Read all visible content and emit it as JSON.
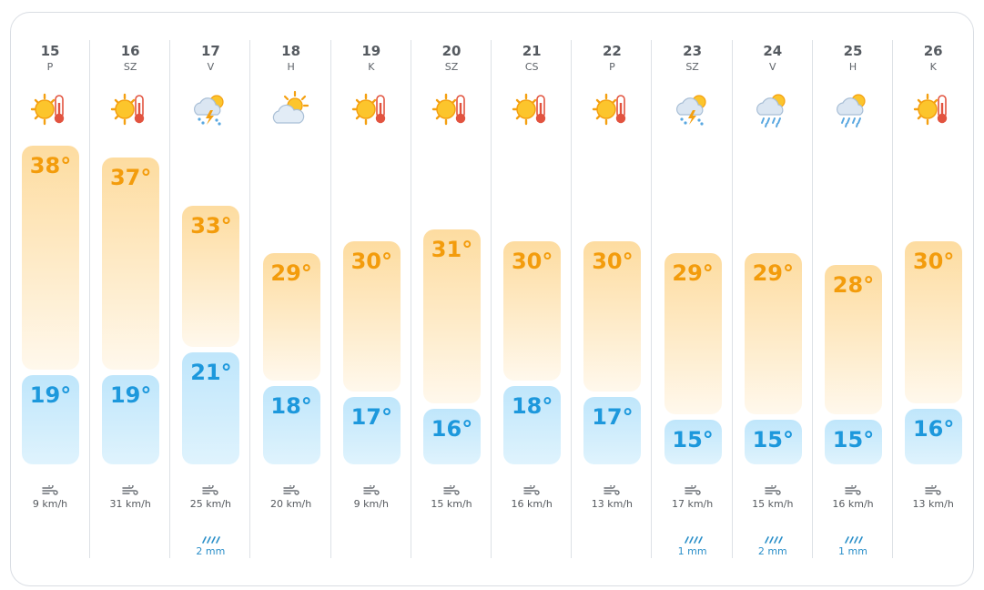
{
  "colors": {
    "high": "#f39c0c",
    "low": "#1d98dc",
    "rain": "#2b8fc9"
  },
  "days": [
    {
      "num": "15",
      "name": "P",
      "icon": "sun-thermometer-icon",
      "high": "38°",
      "high_c": 38,
      "low": "19°",
      "low_c": 19,
      "wind": "9 km/h",
      "rain": ""
    },
    {
      "num": "16",
      "name": "SZ",
      "icon": "sun-thermometer-icon",
      "high": "37°",
      "high_c": 37,
      "low": "19°",
      "low_c": 19,
      "wind": "31 km/h",
      "rain": ""
    },
    {
      "num": "17",
      "name": "V",
      "icon": "thunderstorm-icon",
      "high": "33°",
      "high_c": 33,
      "low": "21°",
      "low_c": 21,
      "wind": "25 km/h",
      "rain": "2 mm"
    },
    {
      "num": "18",
      "name": "H",
      "icon": "sun-cloud-icon",
      "high": "29°",
      "high_c": 29,
      "low": "18°",
      "low_c": 18,
      "wind": "20 km/h",
      "rain": ""
    },
    {
      "num": "19",
      "name": "K",
      "icon": "sun-thermometer-icon",
      "high": "30°",
      "high_c": 30,
      "low": "17°",
      "low_c": 17,
      "wind": "9 km/h",
      "rain": ""
    },
    {
      "num": "20",
      "name": "SZ",
      "icon": "sun-thermometer-icon",
      "high": "31°",
      "high_c": 31,
      "low": "16°",
      "low_c": 16,
      "wind": "15 km/h",
      "rain": ""
    },
    {
      "num": "21",
      "name": "CS",
      "icon": "sun-thermometer-icon",
      "high": "30°",
      "high_c": 30,
      "low": "18°",
      "low_c": 18,
      "wind": "16 km/h",
      "rain": ""
    },
    {
      "num": "22",
      "name": "P",
      "icon": "sun-thermometer-icon",
      "high": "30°",
      "high_c": 30,
      "low": "17°",
      "low_c": 17,
      "wind": "13 km/h",
      "rain": ""
    },
    {
      "num": "23",
      "name": "SZ",
      "icon": "thunderstorm-icon",
      "high": "29°",
      "high_c": 29,
      "low": "15°",
      "low_c": 15,
      "wind": "17 km/h",
      "rain": "1 mm"
    },
    {
      "num": "24",
      "name": "V",
      "icon": "sun-rain-icon",
      "high": "29°",
      "high_c": 29,
      "low": "15°",
      "low_c": 15,
      "wind": "15 km/h",
      "rain": "2 mm"
    },
    {
      "num": "25",
      "name": "H",
      "icon": "sun-rain-icon",
      "high": "28°",
      "high_c": 28,
      "low": "15°",
      "low_c": 15,
      "wind": "16 km/h",
      "rain": "1 mm"
    },
    {
      "num": "26",
      "name": "K",
      "icon": "sun-thermometer-icon",
      "high": "30°",
      "high_c": 30,
      "low": "16°",
      "low_c": 16,
      "wind": "13 km/h",
      "rain": ""
    }
  ]
}
